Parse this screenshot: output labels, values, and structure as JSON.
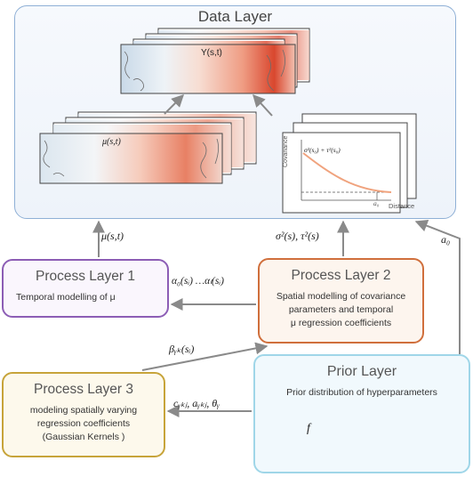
{
  "data_layer": {
    "title": "Data Layer",
    "y_map_label": "Y(s,t)",
    "mu_map_label": "μ(s,t)",
    "variogram": {
      "ylabel": "Covariance",
      "xlabel": "Distance",
      "curve_label": "σ²(s₀) + τ²(s₀)",
      "tick_label": "a₀"
    }
  },
  "process_layer_1": {
    "title": "Process Layer 1",
    "description": "Temporal modelling of μ"
  },
  "process_layer_2": {
    "title": "Process Layer 2",
    "description_lines": [
      "Spatial modelling of covariance",
      "parameters and temporal",
      "μ regression coefficients"
    ]
  },
  "process_layer_3": {
    "title": "Process Layer 3",
    "description_lines": [
      "modeling spatially varying",
      "regression coefficients",
      "(Gaussian Kernels )"
    ]
  },
  "prior_layer": {
    "title": "Prior Layer",
    "description": "Prior distribution of hyperparameters",
    "density_label": "f"
  },
  "edge_labels": {
    "mu_to_data": "μ(s,t)",
    "sigma_tau_to_data": "σ²(s), τ²(s)",
    "a0_to_data": "a₀",
    "alpha_pl2_to_pl1": "α₀(sᵢ) …αₗ(sᵢ)",
    "beta_pl3_to_pl2": "βᵧₖ(sᵢ)",
    "prior_to_pl3": "cᵧₖⱼ, aᵧₖⱼ, θᵧ"
  }
}
